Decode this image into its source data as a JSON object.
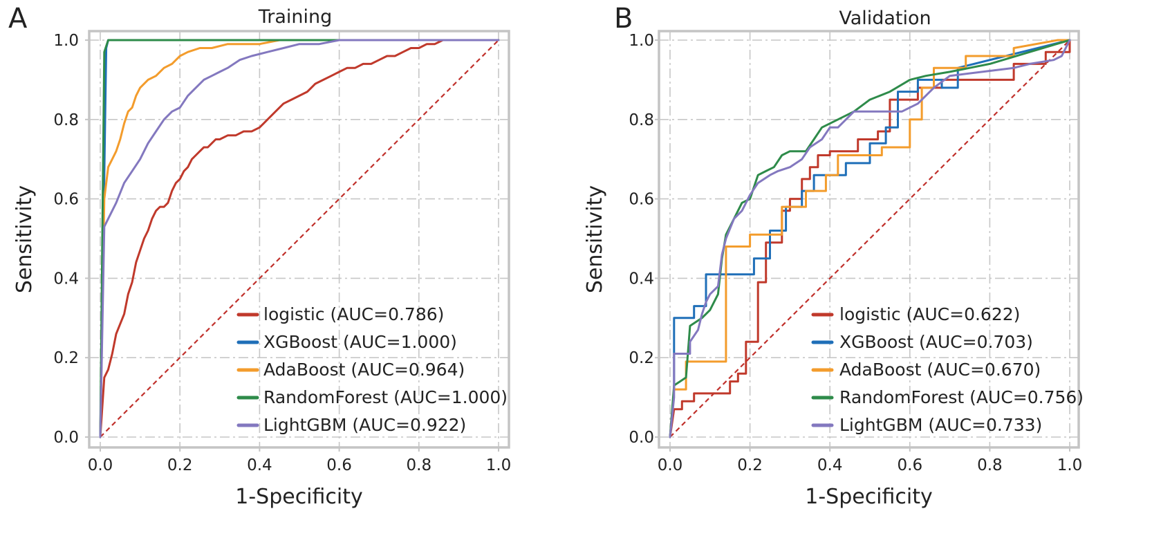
{
  "chart_data": [
    {
      "panel": "A",
      "type": "line",
      "title": "Training",
      "xlabel": "1-Specificity",
      "ylabel": "Sensitivity",
      "xlim": [
        0.0,
        1.0
      ],
      "ylim": [
        0.0,
        1.0
      ],
      "xticks": [
        "0.0",
        "0.2",
        "0.4",
        "0.6",
        "0.8",
        "1.0"
      ],
      "yticks": [
        "0.0",
        "0.2",
        "0.4",
        "0.6",
        "0.8",
        "1.0"
      ],
      "grid": true,
      "legend_position": "lower-right",
      "reference_line": {
        "color": "#c0302b",
        "style": "dashed",
        "x": [
          0,
          1
        ],
        "y": [
          0,
          1
        ]
      },
      "series": [
        {
          "name": "logistic",
          "label": "logistic (AUC=0.786)",
          "auc": 0.786,
          "color": "#c0392b",
          "x": [
            0,
            0.01,
            0.02,
            0.03,
            0.04,
            0.06,
            0.07,
            0.08,
            0.09,
            0.1,
            0.11,
            0.12,
            0.13,
            0.14,
            0.15,
            0.16,
            0.17,
            0.18,
            0.19,
            0.2,
            0.21,
            0.22,
            0.23,
            0.24,
            0.25,
            0.26,
            0.27,
            0.28,
            0.29,
            0.3,
            0.32,
            0.34,
            0.36,
            0.38,
            0.4,
            0.42,
            0.44,
            0.46,
            0.48,
            0.5,
            0.52,
            0.54,
            0.56,
            0.58,
            0.6,
            0.62,
            0.64,
            0.66,
            0.68,
            0.7,
            0.72,
            0.74,
            0.76,
            0.78,
            0.8,
            0.82,
            0.84,
            0.86,
            0.88
          ],
          "y": [
            0,
            0.15,
            0.17,
            0.21,
            0.26,
            0.31,
            0.36,
            0.39,
            0.44,
            0.47,
            0.5,
            0.52,
            0.55,
            0.57,
            0.58,
            0.58,
            0.59,
            0.62,
            0.64,
            0.65,
            0.67,
            0.68,
            0.7,
            0.71,
            0.72,
            0.73,
            0.73,
            0.74,
            0.75,
            0.75,
            0.76,
            0.76,
            0.77,
            0.77,
            0.78,
            0.8,
            0.82,
            0.84,
            0.85,
            0.86,
            0.87,
            0.89,
            0.9,
            0.91,
            0.92,
            0.93,
            0.93,
            0.94,
            0.94,
            0.95,
            0.96,
            0.96,
            0.97,
            0.98,
            0.98,
            0.99,
            0.99,
            1.0,
            1.0
          ]
        },
        {
          "name": "XGBoost",
          "label": "XGBoost (AUC=1.000)",
          "auc": 1.0,
          "color": "#1f6fb8",
          "x": [
            0,
            0.015,
            0.02,
            1.0
          ],
          "y": [
            0,
            0.98,
            1.0,
            1.0
          ]
        },
        {
          "name": "AdaBoost",
          "label": "AdaBoost (AUC=0.964)",
          "auc": 0.964,
          "color": "#f39c2c",
          "x": [
            0,
            0.01,
            0.02,
            0.03,
            0.04,
            0.05,
            0.06,
            0.07,
            0.08,
            0.09,
            0.1,
            0.12,
            0.14,
            0.16,
            0.18,
            0.2,
            0.22,
            0.25,
            0.28,
            0.32,
            0.36,
            0.4,
            0.45,
            0.5,
            0.6,
            1.0
          ],
          "y": [
            0,
            0.6,
            0.68,
            0.7,
            0.72,
            0.75,
            0.79,
            0.82,
            0.83,
            0.86,
            0.88,
            0.9,
            0.91,
            0.93,
            0.94,
            0.96,
            0.97,
            0.98,
            0.98,
            0.99,
            0.99,
            0.99,
            1.0,
            1.0,
            1.0,
            1.0
          ]
        },
        {
          "name": "RandomForest",
          "label": "RandomForest (AUC=1.000)",
          "auc": 1.0,
          "color": "#2e8b4a",
          "x": [
            0,
            0.01,
            0.02,
            1.0
          ],
          "y": [
            0,
            0.97,
            1.0,
            1.0
          ]
        },
        {
          "name": "LightGBM",
          "label": "LightGBM (AUC=0.922)",
          "auc": 0.922,
          "color": "#8378bf",
          "x": [
            0,
            0.01,
            0.02,
            0.04,
            0.06,
            0.08,
            0.1,
            0.12,
            0.14,
            0.16,
            0.18,
            0.2,
            0.22,
            0.24,
            0.26,
            0.28,
            0.3,
            0.32,
            0.35,
            0.38,
            0.42,
            0.46,
            0.5,
            0.55,
            0.6,
            0.7,
            0.8,
            1.0
          ],
          "y": [
            0,
            0.53,
            0.55,
            0.59,
            0.64,
            0.67,
            0.7,
            0.74,
            0.77,
            0.8,
            0.82,
            0.83,
            0.86,
            0.88,
            0.9,
            0.91,
            0.92,
            0.93,
            0.95,
            0.96,
            0.97,
            0.98,
            0.99,
            0.99,
            1.0,
            1.0,
            1.0,
            1.0
          ]
        }
      ]
    },
    {
      "panel": "B",
      "type": "line",
      "title": "Validation",
      "xlabel": "1-Specificity",
      "ylabel": "Sensitivity",
      "xlim": [
        0.0,
        1.0
      ],
      "ylim": [
        0.0,
        1.0
      ],
      "xticks": [
        "0.0",
        "0.2",
        "0.4",
        "0.6",
        "0.8",
        "1.0"
      ],
      "yticks": [
        "0.0",
        "0.2",
        "0.4",
        "0.6",
        "0.8",
        "1.0"
      ],
      "grid": true,
      "legend_position": "lower-right",
      "reference_line": {
        "color": "#c0302b",
        "style": "dashed",
        "x": [
          0,
          1
        ],
        "y": [
          0,
          1
        ]
      },
      "series": [
        {
          "name": "logistic",
          "label": "logistic (AUC=0.622)",
          "auc": 0.622,
          "color": "#c0392b",
          "x": [
            0,
            0.01,
            0.03,
            0.03,
            0.06,
            0.06,
            0.15,
            0.15,
            0.17,
            0.17,
            0.19,
            0.19,
            0.22,
            0.22,
            0.24,
            0.24,
            0.28,
            0.28,
            0.3,
            0.3,
            0.33,
            0.33,
            0.35,
            0.35,
            0.37,
            0.37,
            0.4,
            0.4,
            0.47,
            0.47,
            0.52,
            0.52,
            0.55,
            0.55,
            0.62,
            0.62,
            0.68,
            0.68,
            0.86,
            0.86,
            0.94,
            0.94,
            1.0,
            1.0
          ],
          "y": [
            0,
            0.07,
            0.07,
            0.09,
            0.09,
            0.11,
            0.11,
            0.14,
            0.14,
            0.16,
            0.16,
            0.24,
            0.24,
            0.39,
            0.39,
            0.49,
            0.49,
            0.57,
            0.57,
            0.6,
            0.6,
            0.65,
            0.65,
            0.68,
            0.68,
            0.71,
            0.71,
            0.72,
            0.72,
            0.75,
            0.75,
            0.77,
            0.77,
            0.85,
            0.85,
            0.88,
            0.88,
            0.9,
            0.9,
            0.94,
            0.94,
            0.97,
            0.97,
            1.0
          ]
        },
        {
          "name": "XGBoost",
          "label": "XGBoost (AUC=0.703)",
          "auc": 0.703,
          "color": "#1f6fb8",
          "x": [
            0,
            0.01,
            0.01,
            0.06,
            0.06,
            0.09,
            0.09,
            0.21,
            0.21,
            0.25,
            0.25,
            0.29,
            0.29,
            0.33,
            0.33,
            0.36,
            0.36,
            0.44,
            0.44,
            0.5,
            0.5,
            0.54,
            0.54,
            0.57,
            0.57,
            0.62,
            0.62,
            0.68,
            0.68,
            0.72,
            0.72,
            1.0
          ],
          "y": [
            0,
            0.12,
            0.3,
            0.3,
            0.33,
            0.33,
            0.41,
            0.41,
            0.45,
            0.45,
            0.52,
            0.52,
            0.58,
            0.58,
            0.62,
            0.62,
            0.66,
            0.66,
            0.69,
            0.69,
            0.74,
            0.74,
            0.78,
            0.78,
            0.87,
            0.87,
            0.9,
            0.9,
            0.88,
            0.88,
            0.93,
            1.0
          ]
        },
        {
          "name": "AdaBoost",
          "label": "AdaBoost (AUC=0.670)",
          "auc": 0.67,
          "color": "#f39c2c",
          "x": [
            0,
            0.01,
            0.04,
            0.04,
            0.14,
            0.14,
            0.2,
            0.2,
            0.28,
            0.28,
            0.34,
            0.34,
            0.39,
            0.39,
            0.42,
            0.42,
            0.53,
            0.53,
            0.6,
            0.6,
            0.63,
            0.63,
            0.66,
            0.66,
            0.74,
            0.74,
            0.86,
            0.86,
            0.97,
            1.0
          ],
          "y": [
            0,
            0.12,
            0.12,
            0.19,
            0.19,
            0.48,
            0.48,
            0.51,
            0.51,
            0.58,
            0.58,
            0.62,
            0.62,
            0.66,
            0.66,
            0.71,
            0.71,
            0.73,
            0.73,
            0.8,
            0.8,
            0.88,
            0.88,
            0.93,
            0.93,
            0.96,
            0.96,
            0.98,
            1.0,
            1.0
          ]
        },
        {
          "name": "RandomForest",
          "label": "RandomForest (AUC=0.756)",
          "auc": 0.756,
          "color": "#2e8b4a",
          "x": [
            0,
            0.01,
            0.04,
            0.05,
            0.08,
            0.1,
            0.12,
            0.13,
            0.14,
            0.16,
            0.18,
            0.2,
            0.22,
            0.24,
            0.26,
            0.28,
            0.3,
            0.34,
            0.36,
            0.38,
            0.42,
            0.46,
            0.5,
            0.55,
            0.6,
            0.64,
            0.7,
            0.8,
            0.9,
            1.0
          ],
          "y": [
            0,
            0.13,
            0.15,
            0.28,
            0.3,
            0.32,
            0.36,
            0.45,
            0.51,
            0.55,
            0.59,
            0.6,
            0.66,
            0.67,
            0.68,
            0.71,
            0.72,
            0.72,
            0.75,
            0.78,
            0.8,
            0.82,
            0.85,
            0.87,
            0.9,
            0.91,
            0.92,
            0.94,
            0.97,
            1.0
          ]
        },
        {
          "name": "LightGBM",
          "label": "LightGBM (AUC=0.733)",
          "auc": 0.733,
          "color": "#8378bf",
          "x": [
            0,
            0.01,
            0.01,
            0.05,
            0.05,
            0.07,
            0.08,
            0.09,
            0.1,
            0.12,
            0.13,
            0.14,
            0.16,
            0.18,
            0.2,
            0.22,
            0.25,
            0.27,
            0.3,
            0.33,
            0.35,
            0.38,
            0.4,
            0.42,
            0.46,
            0.52,
            0.58,
            0.62,
            0.66,
            0.7,
            0.86,
            0.9,
            0.96,
            0.98,
            1.0
          ],
          "y": [
            0,
            0.1,
            0.21,
            0.21,
            0.24,
            0.27,
            0.31,
            0.34,
            0.36,
            0.38,
            0.46,
            0.5,
            0.55,
            0.57,
            0.61,
            0.64,
            0.66,
            0.67,
            0.68,
            0.7,
            0.73,
            0.75,
            0.78,
            0.78,
            0.82,
            0.82,
            0.82,
            0.84,
            0.88,
            0.91,
            0.93,
            0.94,
            0.95,
            0.96,
            1.0
          ]
        }
      ]
    }
  ]
}
